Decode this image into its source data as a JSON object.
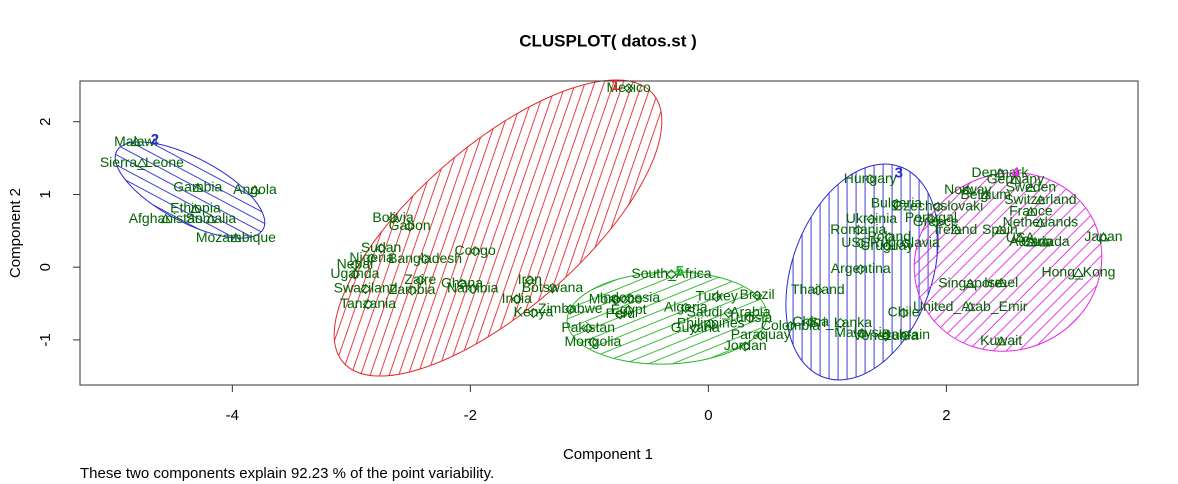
{
  "chart_data": {
    "type": "scatter",
    "title": "CLUSPLOT( datos.st )",
    "subtitle": "These two components explain 92.23 % of the point variability.",
    "xlabel": "Component 1",
    "ylabel": "Component 2",
    "xlim": [
      -5.28,
      3.61
    ],
    "ylim": [
      -1.62,
      2.56
    ],
    "xticks": [
      -4,
      -2,
      0,
      2
    ],
    "yticks": [
      -1,
      0,
      1,
      2
    ],
    "label_color": "#006400",
    "series": [
      {
        "name": "1",
        "color": "#e8282d",
        "label_x": -0.78,
        "label_y": 2.49,
        "labels": [
          "Mexico",
          "Bolivia",
          "Gabon",
          "Sudan",
          "Nigeria",
          "Congo",
          "Nepal",
          "Uganda",
          "Bangladesh",
          "Zaire",
          "Ghana",
          "Swaziland",
          "Zambia",
          "Namibia",
          "Tanzania",
          "Iran",
          "Botswana",
          "India",
          "Kenya"
        ],
        "x": [
          -0.67,
          -2.65,
          -2.51,
          -2.75,
          -2.83,
          -1.96,
          -2.97,
          -2.97,
          -2.38,
          -2.42,
          -2.07,
          -2.88,
          -2.49,
          -1.98,
          -2.86,
          -1.5,
          -1.31,
          -1.61,
          -1.47
        ],
        "y": [
          2.46,
          0.67,
          0.56,
          0.26,
          0.12,
          0.22,
          0.03,
          -0.1,
          0.11,
          -0.18,
          -0.23,
          -0.3,
          -0.32,
          -0.3,
          -0.51,
          -0.18,
          -0.29,
          -0.44,
          -0.63
        ]
      },
      {
        "name": "2",
        "color": "#2828d8",
        "label_x": -4.65,
        "label_y": 1.75,
        "labels": [
          "Malawi",
          "Sierra_Leone",
          "Gambia",
          "Angola",
          "Ethiopia",
          "Afghanistan",
          "Somalia",
          "Mozambique"
        ],
        "x": [
          -4.81,
          -4.76,
          -4.29,
          -3.81,
          -4.31,
          -4.56,
          -4.18,
          -3.97
        ],
        "y": [
          1.72,
          1.43,
          1.09,
          1.06,
          0.8,
          0.66,
          0.66,
          0.4
        ]
      },
      {
        "name": "3",
        "color": "#2828d8",
        "label_x": 1.6,
        "label_y": 1.29,
        "labels": [
          "Hungary",
          "Bulgaria",
          "Czechoslovaki",
          "Ukrainia",
          "Portugal",
          "Greece",
          "Romania",
          "Poland",
          "USSR",
          "Yugoslavia",
          "Uruguay",
          "Argentina",
          "Thailand",
          "China",
          "Sri_Lanka",
          "Chile",
          "Malaysia",
          "Venezuela",
          "Bahrain"
        ],
        "x": [
          1.36,
          1.58,
          1.93,
          1.37,
          1.87,
          1.91,
          1.26,
          1.52,
          1.28,
          1.66,
          1.5,
          1.28,
          0.92,
          0.86,
          1.11,
          1.64,
          1.29,
          1.49,
          1.66
        ],
        "y": [
          1.21,
          0.87,
          0.83,
          0.66,
          0.67,
          0.62,
          0.51,
          0.41,
          0.33,
          0.33,
          0.29,
          -0.03,
          -0.32,
          -0.76,
          -0.77,
          -0.63,
          -0.91,
          -0.95,
          -0.94
        ]
      },
      {
        "name": "4",
        "color": "#e628e6",
        "label_x": 2.58,
        "label_y": 1.29,
        "labels": [
          "Denmark",
          "Germany",
          "Norway",
          "Sweden",
          "Belgium",
          "Switzerland",
          "France",
          "Netherlands",
          "Ireland",
          "Spain",
          "USA",
          "Austria",
          "Canada",
          "Japan",
          "Singapore",
          "Israel",
          "Hong_Kong",
          "United_Arab_Emir",
          "Kuwait"
        ],
        "x": [
          2.45,
          2.58,
          2.18,
          2.71,
          2.33,
          2.79,
          2.71,
          2.79,
          2.08,
          2.45,
          2.62,
          2.71,
          2.83,
          3.32,
          2.2,
          2.46,
          3.11,
          2.2,
          2.46
        ],
        "y": [
          1.29,
          1.2,
          1.06,
          1.09,
          0.99,
          0.92,
          0.76,
          0.61,
          0.51,
          0.51,
          0.4,
          0.34,
          0.34,
          0.41,
          -0.23,
          -0.22,
          -0.08,
          -0.55,
          -1.02
        ]
      },
      {
        "name": "5",
        "color": "#28b428",
        "label_x": -0.24,
        "label_y": -0.07,
        "labels": [
          "South_Africa",
          "Turkey",
          "Brazil",
          "Indonesia",
          "Morocco",
          "Zimbabwe",
          "Egypt",
          "Algeria",
          "Saudi_Arabia",
          "Peru",
          "Tunisia",
          "Colombia",
          "Pakistan",
          "Guyana",
          "Philippines",
          "Paraquay",
          "Mongolia",
          "Jordan"
        ],
        "x": [
          -0.31,
          0.07,
          0.41,
          -0.66,
          -0.78,
          -1.16,
          -0.67,
          -0.19,
          0.17,
          -0.74,
          0.35,
          0.69,
          -1.01,
          -0.11,
          0.02,
          0.44,
          -0.97,
          0.31
        ],
        "y": [
          -0.1,
          -0.41,
          -0.39,
          -0.43,
          -0.45,
          -0.58,
          -0.59,
          -0.56,
          -0.63,
          -0.65,
          -0.7,
          -0.81,
          -0.84,
          -0.84,
          -0.78,
          -0.94,
          -1.03,
          -1.09
        ]
      }
    ]
  }
}
